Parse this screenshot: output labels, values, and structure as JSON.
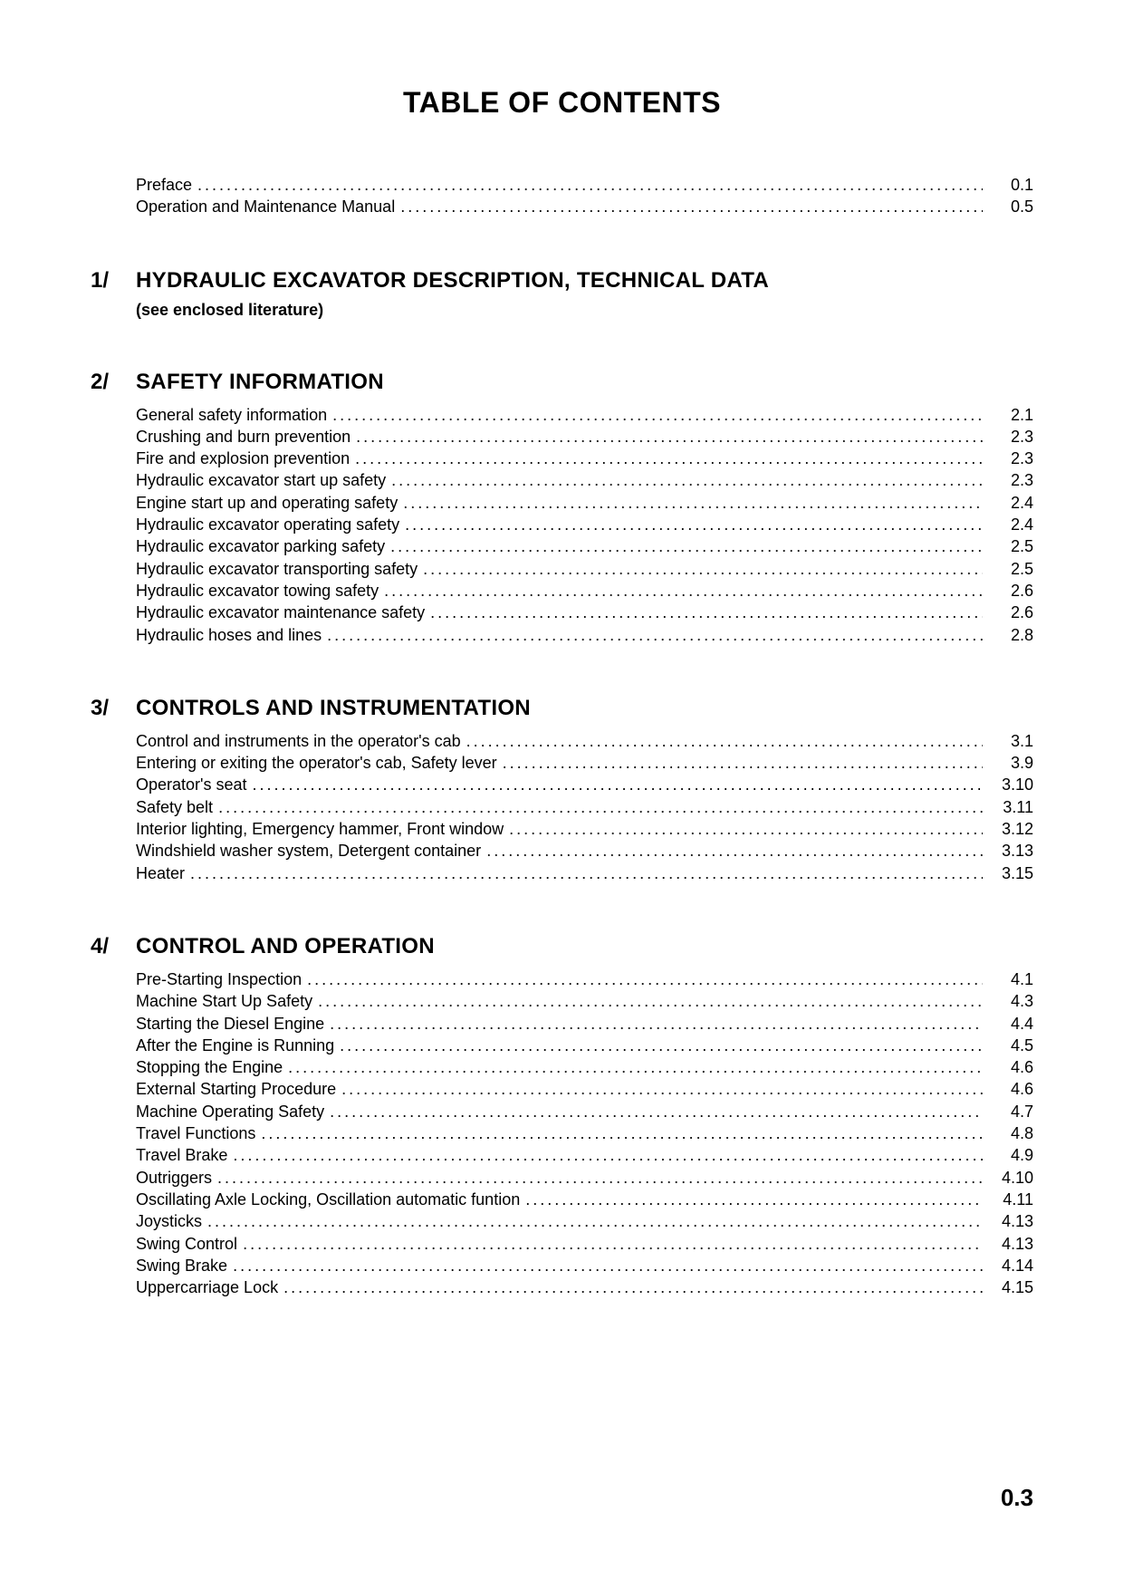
{
  "title": "TABLE OF CONTENTS",
  "page_number": "0.3",
  "leader_char": ".",
  "front_matter": [
    {
      "label": "Preface",
      "page": "0.1"
    },
    {
      "label": "Operation and Maintenance Manual",
      "page": "0.5"
    }
  ],
  "sections": [
    {
      "num": "1/",
      "title": "HYDRAULIC EXCAVATOR DESCRIPTION, TECHNICAL DATA",
      "note": "(see enclosed literature)",
      "entries": []
    },
    {
      "num": "2/",
      "title": "SAFETY INFORMATION",
      "note": "",
      "entries": [
        {
          "label": "General safety information",
          "page": "2.1"
        },
        {
          "label": "Crushing and burn prevention",
          "page": "2.3"
        },
        {
          "label": "Fire and explosion prevention",
          "page": "2.3"
        },
        {
          "label": "Hydraulic excavator start up safety",
          "page": "2.3"
        },
        {
          "label": "Engine start up and operating safety",
          "page": "2.4"
        },
        {
          "label": "Hydraulic excavator operating safety",
          "page": "2.4"
        },
        {
          "label": "Hydraulic excavator parking safety",
          "page": "2.5"
        },
        {
          "label": "Hydraulic excavator transporting safety",
          "page": "2.5"
        },
        {
          "label": "Hydraulic excavator towing safety",
          "page": "2.6"
        },
        {
          "label": "Hydraulic excavator maintenance safety",
          "page": "2.6"
        },
        {
          "label": "Hydraulic hoses and lines",
          "page": "2.8"
        }
      ]
    },
    {
      "num": "3/",
      "title": "CONTROLS AND INSTRUMENTATION",
      "note": "",
      "entries": [
        {
          "label": "Control and instruments in the operator's cab",
          "page": "3.1"
        },
        {
          "label": "Entering or exiting the operator's cab, Safety lever",
          "page": "3.9"
        },
        {
          "label": "Operator's seat",
          "page": "3.10"
        },
        {
          "label": "Safety belt",
          "page": "3.11"
        },
        {
          "label": "Interior lighting, Emergency hammer, Front window",
          "page": "3.12"
        },
        {
          "label": "Windshield washer system,  Detergent container",
          "page": "3.13"
        },
        {
          "label": "Heater",
          "page": "3.15"
        }
      ]
    },
    {
      "num": "4/",
      "title": "CONTROL AND OPERATION",
      "note": "",
      "entries": [
        {
          "label": "Pre-Starting Inspection",
          "page": "4.1"
        },
        {
          "label": "Machine Start Up Safety",
          "page": "4.3"
        },
        {
          "label": "Starting the Diesel Engine",
          "page": "4.4"
        },
        {
          "label": "After the Engine is Running",
          "page": "4.5"
        },
        {
          "label": "Stopping the Engine",
          "page": "4.6"
        },
        {
          "label": "External Starting Procedure",
          "page": "4.6"
        },
        {
          "label": "Machine Operating Safety",
          "page": "4.7"
        },
        {
          "label": "Travel Functions",
          "page": "4.8"
        },
        {
          "label": "Travel Brake",
          "page": "4.9"
        },
        {
          "label": "Outriggers",
          "page": "4.10"
        },
        {
          "label": "Oscillating Axle Locking, Oscillation automatic funtion",
          "page": "4.11"
        },
        {
          "label": "Joysticks",
          "page": "4.13"
        },
        {
          "label": "Swing Control",
          "page": "4.13"
        },
        {
          "label": "Swing Brake",
          "page": "4.14"
        },
        {
          "label": "Uppercarriage Lock",
          "page": "4.15"
        }
      ]
    }
  ]
}
